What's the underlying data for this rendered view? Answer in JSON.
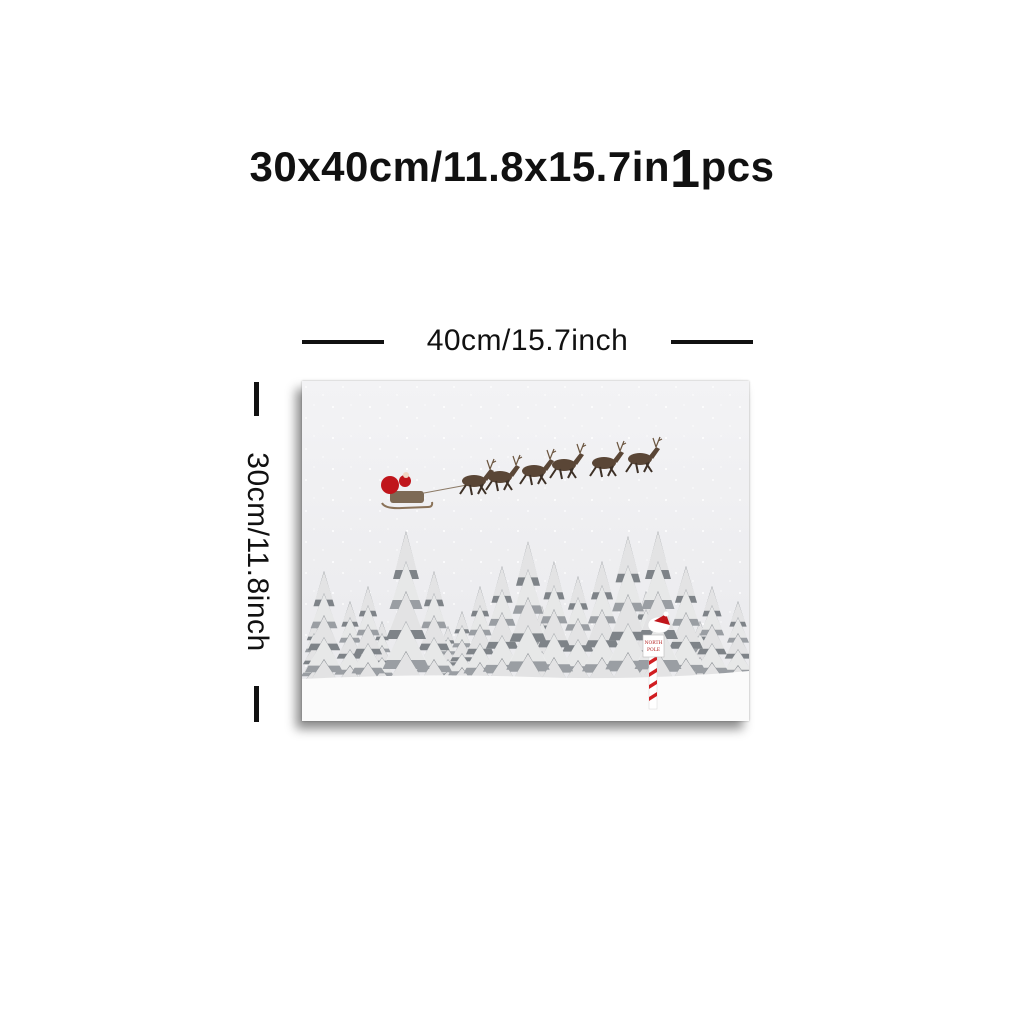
{
  "heading": {
    "size_text": "30x40cm/11.8x15.7in",
    "quantity_number": "1",
    "quantity_unit": "pcs"
  },
  "dimensions": {
    "width_label": "40cm/15.7inch",
    "height_label": "30cm/11.8inch"
  },
  "artwork": {
    "sign_text_line1": "NORTH",
    "sign_text_line2": "POLE",
    "colors": {
      "sky": "#efeff1",
      "snow": "#fbfbfb",
      "santa_red": "#c0151b",
      "reindeer_brown": "#5a4636"
    }
  }
}
